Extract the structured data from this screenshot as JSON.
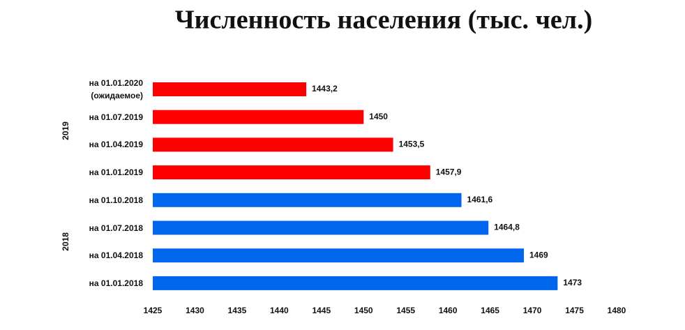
{
  "chart_data": {
    "type": "barh",
    "title": "Численность населения (тыс. чел.)",
    "categories": [
      "на 01.01.2020\n(ожидаемое)",
      "на 01.07.2019",
      "на 01.04.2019",
      "на 01.01.2019",
      "на 01.10.2018",
      "на 01.07.2018",
      "на 01.04.2018",
      "на 01.01.2018"
    ],
    "series": [
      {
        "name": "2019",
        "color": "#ff0000",
        "values": [
          1443.2,
          1450,
          1453.5,
          1457.9,
          null,
          null,
          null,
          null
        ],
        "value_labels": [
          "1443,2",
          "1450",
          "1453,5",
          "1457,9",
          null,
          null,
          null,
          null
        ]
      },
      {
        "name": "2018",
        "color": "#0066ee",
        "values": [
          null,
          null,
          null,
          null,
          1461.6,
          1464.8,
          1469,
          1473
        ],
        "value_labels": [
          null,
          null,
          null,
          null,
          "1461,6",
          "1464,8",
          "1469",
          "1473"
        ]
      }
    ],
    "xlim": [
      1425,
      1480
    ],
    "xticks": [
      1425,
      1430,
      1435,
      1440,
      1445,
      1450,
      1455,
      1460,
      1465,
      1470,
      1475,
      1480
    ],
    "grid": false
  }
}
